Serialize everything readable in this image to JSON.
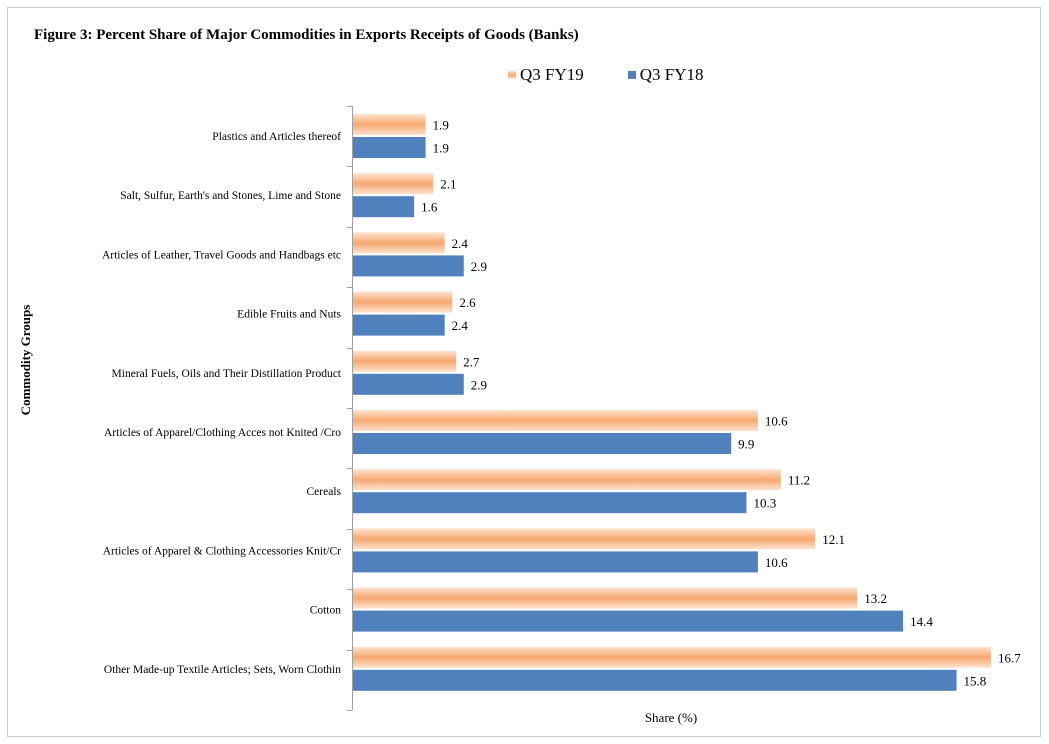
{
  "chart_data": {
    "type": "bar",
    "orientation": "horizontal",
    "title": "Figure 3: Percent Share of Major Commodities in Exports Receipts of Goods  (Banks)",
    "xlabel": "Share (%)",
    "ylabel": "Commodity Groups",
    "xlim": [
      0,
      18
    ],
    "grid": false,
    "legend_position": "top",
    "categories": [
      "Plastics and Articles thereof",
      "Salt, Sulfur, Earth's and Stones, Lime and Stone",
      "Articles of Leather, Travel Goods and Handbags etc",
      "Edible Fruits and Nuts",
      "Mineral Fuels, Oils and Their Distillation Product",
      "Articles of Apparel/Clothing Acces not Knited /Cro",
      "Cereals",
      "Articles of Apparel & Clothing Accessories Knit/Cr",
      "Cotton",
      "Other Made-up Textile Articles; Sets, Worn Clothin"
    ],
    "series": [
      {
        "name": "Q3 FY19",
        "color": "#f6a870",
        "values": [
          1.9,
          2.1,
          2.4,
          2.6,
          2.7,
          10.6,
          11.2,
          12.1,
          13.2,
          16.7
        ],
        "labels": [
          "1.9",
          "2.1",
          "2.4",
          "2.6",
          "2.7",
          "10.6",
          "11.2",
          "12.1",
          "13.2",
          "16.7"
        ]
      },
      {
        "name": "Q3 FY18",
        "color": "#4f81bd",
        "values": [
          1.9,
          1.6,
          2.9,
          2.4,
          2.9,
          9.9,
          10.3,
          10.6,
          14.4,
          15.8
        ],
        "labels": [
          "1.9",
          "1.6",
          "2.9",
          "2.4",
          "2.9",
          "9.9",
          "10.3",
          "10.6",
          "14.4",
          "15.8"
        ]
      }
    ]
  }
}
